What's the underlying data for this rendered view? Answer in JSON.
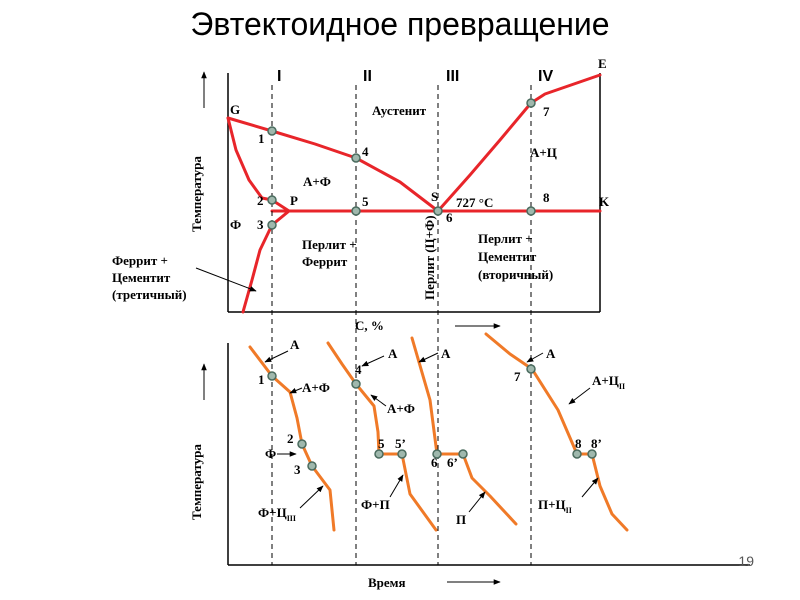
{
  "title": "Эвтектоидное превращение",
  "page_number": "19",
  "colors": {
    "curve": "#e8252a",
    "cooling": "#f07a28",
    "marker_fill": "#9fb8ad",
    "marker_stroke": "#4a6b5e"
  },
  "top": {
    "y_axis_label": "Температура",
    "x_axis_label": "C, %",
    "columns": [
      "I",
      "II",
      "III",
      "IV"
    ],
    "points": {
      "G": "G",
      "E": "E",
      "P": "P",
      "S": "S",
      "K": "K",
      "p1": "1",
      "p2": "2",
      "p3": "3",
      "p4": "4",
      "p5": "5",
      "p6": "6",
      "p7": "7",
      "p8": "8"
    },
    "regions": {
      "austenite": "Аустенит",
      "a_f": "А+Ф",
      "a_c": "А+Ц",
      "ferrite": "Ф",
      "temp_727": "727 °С",
      "pearlite_ferrite_1": "Перлит +",
      "pearlite_ferrite_2": "Феррит",
      "pearlite_vertical": "Перлит (Ц+Ф)",
      "pearlite_cementite_1": "Перлит +",
      "pearlite_cementite_2": "Цементит",
      "pearlite_cementite_3": "(вторичный)"
    },
    "callout": [
      "Феррит +",
      "Цементит",
      "(третичный)"
    ]
  },
  "bottom": {
    "y_axis_label": "Температура",
    "x_axis_label": "Время",
    "c1": {
      "A": "А",
      "p1": "1",
      "AF": "А+Ф",
      "p2": "2",
      "F": "Ф",
      "p3": "3",
      "FC": "Ф+Ц",
      "FC_sub": "III"
    },
    "c2": {
      "A": "А",
      "p4": "4",
      "AF": "А+Ф",
      "p5": "5",
      "p5b": "5’",
      "FP": "Ф+П"
    },
    "c3": {
      "A": "А",
      "p6": "6",
      "p6b": "6’",
      "P": "П"
    },
    "c4": {
      "A": "А",
      "p7": "7",
      "AC": "А+Ц",
      "AC_sub": "II",
      "p8": "8",
      "p8b": "8’",
      "PC": "П+Ц",
      "PC_sub": "II"
    }
  }
}
